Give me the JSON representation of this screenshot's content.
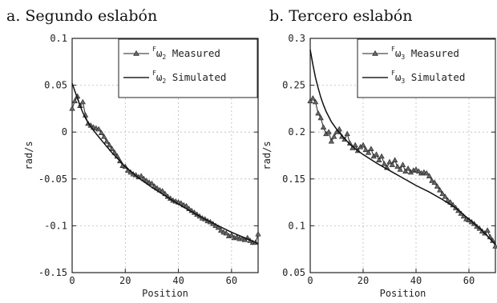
{
  "chart_data": [
    {
      "type": "line",
      "title": "a. Segundo eslabón",
      "xlabel": "Position",
      "ylabel": "rad/s",
      "xlim": [
        0,
        70
      ],
      "ylim": [
        -0.15,
        0.1
      ],
      "xticks": [
        "0",
        "20",
        "40",
        "60"
      ],
      "yticks": [
        "-0.15",
        "-0.1",
        "-0.05",
        "0",
        "0.05",
        "0.1"
      ],
      "ytick_values": [
        -0.15,
        -0.1,
        -0.05,
        0,
        0.05,
        0.1
      ],
      "xtick_values": [
        0,
        20,
        40,
        60
      ],
      "grid": true,
      "legend_position": "top-right",
      "series": [
        {
          "name": "Measured",
          "legend_prefix": "F",
          "legend_symbol": "ω",
          "legend_subscript": "2",
          "marker": "triangle",
          "x": [
            0,
            1,
            2,
            3,
            4,
            5,
            6,
            7,
            8,
            9,
            10,
            11,
            12,
            13,
            14,
            15,
            16,
            17,
            18,
            19,
            20,
            21,
            22,
            23,
            24,
            25,
            26,
            27,
            28,
            29,
            30,
            31,
            32,
            33,
            34,
            35,
            36,
            37,
            38,
            39,
            40,
            41,
            42,
            43,
            44,
            45,
            46,
            47,
            48,
            49,
            50,
            51,
            52,
            53,
            54,
            55,
            56,
            57,
            58,
            59,
            60,
            61,
            62,
            63,
            64,
            65,
            66,
            67,
            68,
            69,
            70
          ],
          "values": [
            0.025,
            0.033,
            0.038,
            0.028,
            0.032,
            0.018,
            0.009,
            0.007,
            0.005,
            0.004,
            0.003,
            -0.001,
            -0.005,
            -0.01,
            -0.014,
            -0.018,
            -0.022,
            -0.026,
            -0.031,
            -0.036,
            -0.037,
            -0.041,
            -0.043,
            -0.045,
            -0.046,
            -0.048,
            -0.047,
            -0.05,
            -0.052,
            -0.054,
            -0.055,
            -0.058,
            -0.06,
            -0.062,
            -0.063,
            -0.066,
            -0.069,
            -0.071,
            -0.073,
            -0.074,
            -0.075,
            -0.076,
            -0.078,
            -0.079,
            -0.082,
            -0.084,
            -0.086,
            -0.088,
            -0.09,
            -0.092,
            -0.093,
            -0.095,
            -0.096,
            -0.098,
            -0.1,
            -0.102,
            -0.105,
            -0.107,
            -0.108,
            -0.111,
            -0.11,
            -0.113,
            -0.112,
            -0.114,
            -0.114,
            -0.115,
            -0.113,
            -0.116,
            -0.118,
            -0.118,
            -0.109
          ]
        },
        {
          "name": "Simulated",
          "legend_prefix": "F",
          "legend_symbol": "ω",
          "legend_subscript": "2",
          "marker": "none",
          "x": [
            0,
            1,
            2,
            3,
            4,
            5,
            6,
            8,
            10,
            12,
            15,
            18,
            20,
            25,
            30,
            35,
            40,
            45,
            50,
            55,
            60,
            65,
            70
          ],
          "values": [
            0.052,
            0.044,
            0.036,
            0.028,
            0.021,
            0.015,
            0.01,
            0.002,
            -0.005,
            -0.012,
            -0.022,
            -0.031,
            -0.037,
            -0.049,
            -0.059,
            -0.068,
            -0.077,
            -0.085,
            -0.093,
            -0.1,
            -0.107,
            -0.113,
            -0.119
          ]
        }
      ]
    },
    {
      "type": "line",
      "title": "b. Tercero eslabón",
      "xlabel": "Position",
      "ylabel": "rad/s",
      "xlim": [
        0,
        70
      ],
      "ylim": [
        0.05,
        0.3
      ],
      "xticks": [
        "0",
        "20",
        "40",
        "60"
      ],
      "yticks": [
        "0.05",
        "0.1",
        "0.15",
        "0.2",
        "0.25",
        "0.3"
      ],
      "ytick_values": [
        0.05,
        0.1,
        0.15,
        0.2,
        0.25,
        0.3
      ],
      "xtick_values": [
        0,
        20,
        40,
        60
      ],
      "grid": true,
      "legend_position": "top-right",
      "series": [
        {
          "name": "Measured",
          "legend_prefix": "F",
          "legend_symbol": "ω",
          "legend_subscript": "3",
          "marker": "triangle",
          "x": [
            0,
            1,
            2,
            3,
            4,
            5,
            6,
            7,
            8,
            9,
            10,
            11,
            12,
            13,
            14,
            15,
            16,
            17,
            18,
            19,
            20,
            21,
            22,
            23,
            24,
            25,
            26,
            27,
            28,
            29,
            30,
            31,
            32,
            33,
            34,
            35,
            36,
            37,
            38,
            39,
            40,
            41,
            42,
            43,
            44,
            45,
            46,
            47,
            48,
            49,
            50,
            51,
            52,
            53,
            54,
            55,
            56,
            57,
            58,
            59,
            60,
            61,
            62,
            63,
            64,
            65,
            66,
            67,
            68,
            69,
            70
          ],
          "values": [
            0.233,
            0.236,
            0.232,
            0.22,
            0.215,
            0.205,
            0.198,
            0.2,
            0.19,
            0.195,
            0.2,
            0.203,
            0.195,
            0.192,
            0.198,
            0.188,
            0.183,
            0.186,
            0.18,
            0.184,
            0.186,
            0.181,
            0.178,
            0.182,
            0.174,
            0.176,
            0.17,
            0.174,
            0.166,
            0.162,
            0.168,
            0.165,
            0.17,
            0.163,
            0.16,
            0.165,
            0.158,
            0.161,
            0.157,
            0.159,
            0.16,
            0.158,
            0.156,
            0.157,
            0.156,
            0.153,
            0.148,
            0.146,
            0.142,
            0.138,
            0.134,
            0.131,
            0.127,
            0.125,
            0.122,
            0.119,
            0.116,
            0.113,
            0.11,
            0.107,
            0.106,
            0.104,
            0.102,
            0.099,
            0.097,
            0.094,
            0.092,
            0.095,
            0.088,
            0.084,
            0.078
          ]
        },
        {
          "name": "Simulated",
          "legend_prefix": "F",
          "legend_symbol": "ω",
          "legend_subscript": "3",
          "marker": "none",
          "x": [
            0,
            1,
            2,
            3,
            4,
            5,
            6,
            8,
            10,
            12,
            15,
            18,
            20,
            25,
            30,
            35,
            40,
            45,
            50,
            55,
            60,
            65,
            70
          ],
          "values": [
            0.288,
            0.272,
            0.258,
            0.247,
            0.237,
            0.229,
            0.222,
            0.211,
            0.203,
            0.196,
            0.187,
            0.18,
            0.176,
            0.167,
            0.159,
            0.151,
            0.143,
            0.136,
            0.128,
            0.119,
            0.107,
            0.095,
            0.08
          ]
        }
      ]
    }
  ]
}
